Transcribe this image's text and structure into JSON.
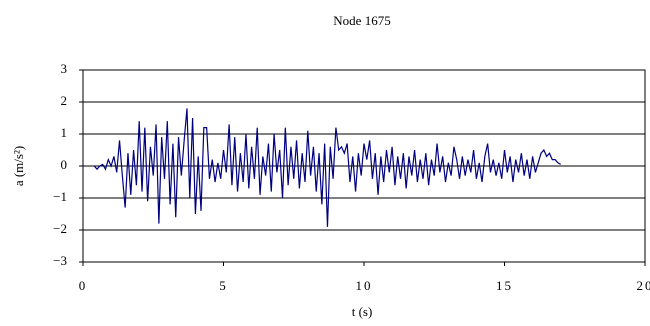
{
  "chart_data": {
    "type": "line",
    "title": "Node 1675",
    "xlabel": "t (s)",
    "ylabel": "a (m/s²)",
    "x": [
      0.4,
      0.5,
      0.6,
      0.7,
      0.8,
      0.9,
      1.0,
      1.1,
      1.2,
      1.3,
      1.4,
      1.5,
      1.6,
      1.7,
      1.8,
      1.9,
      2.0,
      2.1,
      2.2,
      2.3,
      2.4,
      2.5,
      2.6,
      2.7,
      2.8,
      2.9,
      3.0,
      3.1,
      3.2,
      3.3,
      3.4,
      3.5,
      3.6,
      3.7,
      3.8,
      3.9,
      4.0,
      4.1,
      4.2,
      4.3,
      4.4,
      4.5,
      4.6,
      4.7,
      4.8,
      4.9,
      5.0,
      5.1,
      5.2,
      5.3,
      5.4,
      5.5,
      5.6,
      5.7,
      5.8,
      5.9,
      6.0,
      6.1,
      6.2,
      6.3,
      6.4,
      6.5,
      6.6,
      6.7,
      6.8,
      6.9,
      7.0,
      7.1,
      7.2,
      7.3,
      7.4,
      7.5,
      7.6,
      7.7,
      7.8,
      7.9,
      8.0,
      8.1,
      8.2,
      8.3,
      8.4,
      8.5,
      8.6,
      8.7,
      8.8,
      8.9,
      9.0,
      9.1,
      9.2,
      9.3,
      9.4,
      9.5,
      9.6,
      9.7,
      9.8,
      9.9,
      10.0,
      10.1,
      10.2,
      10.3,
      10.4,
      10.5,
      10.6,
      10.7,
      10.8,
      10.9,
      11.0,
      11.1,
      11.2,
      11.3,
      11.4,
      11.5,
      11.6,
      11.7,
      11.8,
      11.9,
      12.0,
      12.1,
      12.2,
      12.3,
      12.4,
      12.5,
      12.6,
      12.7,
      12.8,
      12.9,
      13.0,
      13.1,
      13.2,
      13.3,
      13.4,
      13.5,
      13.6,
      13.7,
      13.8,
      13.9,
      14.0,
      14.1,
      14.2,
      14.3,
      14.4,
      14.5,
      14.6,
      14.7,
      14.8,
      14.9,
      15.0,
      15.1,
      15.2,
      15.3,
      15.4,
      15.5,
      15.6,
      15.7,
      15.8,
      15.9,
      16.0,
      16.1,
      16.2,
      16.3,
      16.4,
      16.5,
      16.6,
      16.7,
      16.8,
      16.9,
      17.0
    ],
    "series": [
      {
        "color": "#000080",
        "values": [
          0,
          -0.1,
          0,
          0.05,
          -0.1,
          0.2,
          0,
          0.3,
          -0.2,
          0.8,
          -0.3,
          -1.3,
          0.4,
          -0.9,
          0.5,
          -0.6,
          1.4,
          -0.8,
          1.2,
          -1.1,
          0.6,
          -0.3,
          1.3,
          -1.8,
          0.9,
          -0.4,
          1.4,
          -1.2,
          0.7,
          -1.6,
          0.9,
          -0.3,
          0.8,
          1.8,
          -1.0,
          1.5,
          -1.5,
          0.3,
          -1.4,
          1.2,
          1.2,
          -0.4,
          0.2,
          -0.5,
          0.1,
          -0.4,
          0.5,
          -0.2,
          1.3,
          -0.6,
          0.9,
          -0.8,
          0.4,
          -0.5,
          1.0,
          -0.7,
          0.6,
          -0.4,
          1.2,
          -0.9,
          0.3,
          -0.3,
          0.7,
          -0.8,
          1.0,
          -0.2,
          0.5,
          -1.0,
          1.2,
          -0.6,
          0.6,
          -0.4,
          0.8,
          -0.7,
          0.4,
          -0.5,
          1.1,
          -0.3,
          0.6,
          -0.8,
          0.4,
          -1.2,
          0.7,
          -1.9,
          0.6,
          -0.4,
          1.2,
          0.5,
          0.6,
          0.4,
          0.7,
          -0.5,
          0.3,
          -0.8,
          0.4,
          -0.3,
          0.7,
          0.2,
          0.8,
          -0.4,
          0.4,
          -0.9,
          0.3,
          -0.5,
          0.5,
          -0.2,
          0.6,
          -0.6,
          0.3,
          -0.4,
          0.4,
          -0.7,
          0.3,
          -0.3,
          0.5,
          -0.5,
          0.2,
          -0.4,
          0.4,
          -0.6,
          0.2,
          -0.3,
          0.7,
          -0.2,
          0.3,
          -0.5,
          0.1,
          -0.3,
          0.6,
          0.2,
          -0.4,
          0.3,
          -0.3,
          0.2,
          -0.2,
          0.5,
          -0.4,
          0.1,
          -0.5,
          0.3,
          0.7,
          -0.2,
          0.2,
          -0.3,
          0.1,
          -0.4,
          0.5,
          -0.2,
          0.3,
          -0.5,
          0.2,
          -0.2,
          0.4,
          -0.3,
          0.2,
          -0.4,
          0.3,
          -0.2,
          0.1,
          0.4,
          0.5,
          0.3,
          0.4,
          0.2,
          0.2,
          0.1,
          0.05
        ]
      }
    ],
    "xlim": [
      0,
      20
    ],
    "xticks": [
      0,
      5,
      10,
      15,
      20
    ],
    "ylim": [
      -3,
      3
    ],
    "yticks": [
      {
        "value": -3,
        "label": "−3"
      },
      {
        "value": -2,
        "label": "−2"
      },
      {
        "value": -1,
        "label": "−1"
      },
      0,
      1,
      2,
      3
    ],
    "grid": true
  }
}
